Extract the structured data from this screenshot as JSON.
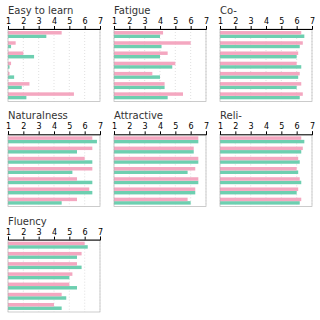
{
  "chart_data": [
    {
      "type": "bar",
      "orientation": "horizontal",
      "title": "Easy to learn",
      "categories": [
        null,
        null,
        null,
        null,
        null,
        null,
        null
      ],
      "series": [
        {
          "color": "#6dcfb0",
          "values": [
            3.5,
            1.2,
            2.7,
            1.1,
            1.4,
            1.9,
            2.2
          ]
        },
        {
          "color": "#f4a7c0",
          "values": [
            4.5,
            1.5,
            2.0,
            1.2,
            1.1,
            2.4,
            5.3
          ]
        }
      ],
      "xlim": [
        1,
        7
      ],
      "xticks": [
        1,
        2,
        3,
        4,
        5,
        6,
        7
      ],
      "grid": true,
      "tick_labels": "x"
    },
    {
      "type": "bar",
      "orientation": "horizontal",
      "title": "Fatigue",
      "categories": [
        null,
        null,
        null,
        null,
        null,
        null,
        null
      ],
      "series": [
        {
          "color": "#6dcfb0",
          "values": [
            4.0,
            4.1,
            4.0,
            4.8,
            4.0,
            4.3,
            4.5
          ]
        },
        {
          "color": "#f4a7c0",
          "values": [
            4.2,
            6.0,
            4.5,
            5.0,
            3.5,
            4.3,
            5.5
          ]
        }
      ],
      "xlim": [
        1,
        7
      ],
      "xticks": [
        1,
        2,
        3,
        4,
        5,
        6,
        7
      ],
      "grid": true,
      "tick_labels": "x"
    },
    {
      "type": "bar",
      "orientation": "horizontal",
      "title": "Co-",
      "categories": [
        null,
        null,
        null,
        null,
        null,
        null,
        null
      ],
      "series": [
        {
          "color": "#6dcfb0",
          "values": [
            6.5,
            6.2,
            6.0,
            6.3,
            6.1,
            6.0,
            6.2
          ]
        },
        {
          "color": "#f4a7c0",
          "values": [
            6.3,
            6.4,
            6.1,
            6.0,
            6.2,
            6.3,
            6.4
          ]
        }
      ],
      "xlim": [
        1,
        7
      ],
      "xticks": [
        1,
        2,
        3,
        4,
        5,
        6,
        7
      ],
      "grid": true,
      "tick_labels": "x"
    },
    {
      "type": "bar",
      "orientation": "horizontal",
      "title": "Naturalness",
      "categories": [
        null,
        null,
        null,
        null,
        null,
        null,
        null
      ],
      "series": [
        {
          "color": "#6dcfb0",
          "values": [
            6.8,
            5.5,
            6.5,
            5.2,
            6.5,
            6.5,
            4.5
          ]
        },
        {
          "color": "#f4a7c0",
          "values": [
            6.5,
            6.5,
            6.0,
            6.5,
            5.5,
            6.3,
            5.5
          ]
        }
      ],
      "xlim": [
        1,
        7
      ],
      "xticks": [
        1,
        2,
        3,
        4,
        5,
        6,
        7
      ],
      "grid": true,
      "tick_labels": "x"
    },
    {
      "type": "bar",
      "orientation": "horizontal",
      "title": "Attractive",
      "categories": [
        null,
        null,
        null,
        null,
        null,
        null,
        null
      ],
      "series": [
        {
          "color": "#6dcfb0",
          "values": [
            6.5,
            6.2,
            6.5,
            5.8,
            6.5,
            6.3,
            6.0
          ]
        },
        {
          "color": "#f4a7c0",
          "values": [
            6.5,
            6.2,
            6.5,
            6.3,
            6.5,
            6.3,
            5.8
          ]
        }
      ],
      "xlim": [
        1,
        7
      ],
      "xticks": [
        1,
        2,
        3,
        4,
        5,
        6,
        7
      ],
      "grid": true,
      "tick_labels": "x"
    },
    {
      "type": "bar",
      "orientation": "horizontal",
      "title": "Reli-",
      "categories": [
        null,
        null,
        null,
        null,
        null,
        null,
        null
      ],
      "series": [
        {
          "color": "#6dcfb0",
          "values": [
            6.5,
            6.3,
            6.2,
            6.1,
            6.3,
            6.0,
            6.2
          ]
        },
        {
          "color": "#f4a7c0",
          "values": [
            6.3,
            6.4,
            6.1,
            6.0,
            6.2,
            6.1,
            6.3
          ]
        }
      ],
      "xlim": [
        1,
        7
      ],
      "xticks": [
        1,
        2,
        3,
        4,
        5,
        6,
        7
      ],
      "grid": true,
      "tick_labels": "x"
    },
    {
      "type": "bar",
      "orientation": "horizontal",
      "title": "Fluency",
      "categories": [
        null,
        null,
        null,
        null,
        null,
        null,
        null
      ],
      "series": [
        {
          "color": "#6dcfb0",
          "values": [
            6.2,
            5.5,
            5.8,
            5.0,
            5.5,
            4.8,
            4.5
          ]
        },
        {
          "color": "#f4a7c0",
          "values": [
            6.0,
            5.8,
            5.5,
            5.2,
            5.0,
            4.5,
            4.0
          ]
        }
      ],
      "xlim": [
        1,
        7
      ],
      "xticks": [
        1,
        2,
        3,
        4,
        5,
        6,
        7
      ],
      "grid": true,
      "tick_labels": "x"
    }
  ]
}
